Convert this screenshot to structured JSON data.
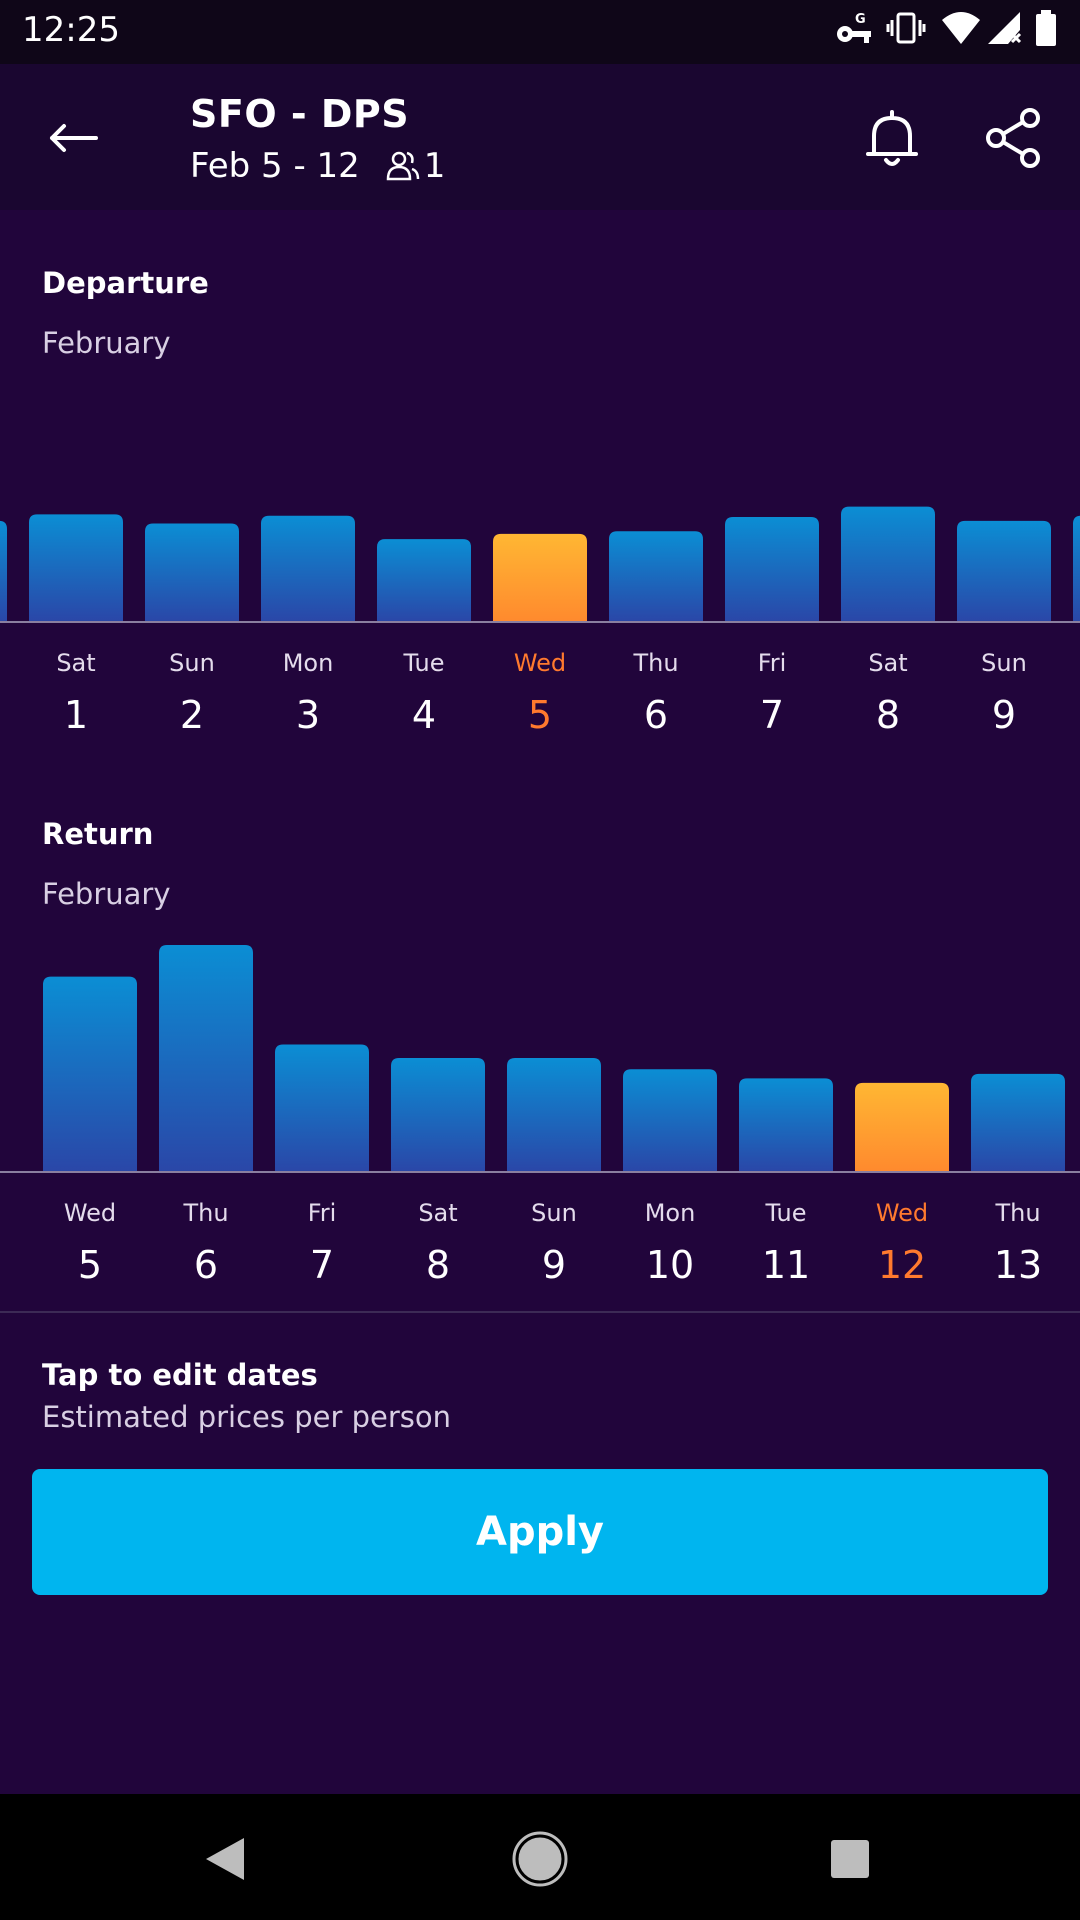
{
  "status_bar": {
    "time": "12:25",
    "icons": [
      "vpn-key-icon",
      "vibrate-icon",
      "wifi-icon",
      "signal-icon",
      "battery-icon"
    ]
  },
  "header": {
    "title": "SFO - DPS",
    "dates": "Feb 5 - 12",
    "passengers": "1",
    "icons": [
      "back-arrow-icon",
      "bell-icon",
      "share-icon"
    ]
  },
  "departure": {
    "title": "Departure",
    "month": "February"
  },
  "return": {
    "title": "Return",
    "month": "February"
  },
  "hint": {
    "title": "Tap to edit dates",
    "subtitle": "Estimated prices per person"
  },
  "apply_label": "Apply",
  "colors": {
    "background": "#21053b",
    "bar_top": "#0b8ed4",
    "bar_bottom": "#2a47a8",
    "selected_top": "#ffb733",
    "selected_bottom": "#ff8a2e",
    "selected_text": "#ff7a2e",
    "apply_button": "#00b5ef"
  },
  "chart_data": [
    {
      "type": "bar",
      "name": "departure",
      "days": [
        "Sat",
        "Sun",
        "Mon",
        "Tue",
        "Wed",
        "Thu",
        "Fri",
        "Sat",
        "Sun"
      ],
      "dates": [
        "1",
        "2",
        "3",
        "4",
        "5",
        "6",
        "7",
        "8",
        "9"
      ],
      "values": [
        0.82,
        0.75,
        0.81,
        0.63,
        0.67,
        0.69,
        0.8,
        0.88,
        0.77
      ],
      "edge_values": [
        0.77,
        0.81
      ],
      "selected_index": 4
    },
    {
      "type": "bar",
      "name": "return",
      "days": [
        "Wed",
        "Thu",
        "Fri",
        "Sat",
        "Sun",
        "Mon",
        "Tue",
        "Wed",
        "Thu"
      ],
      "dates": [
        "5",
        "6",
        "7",
        "8",
        "9",
        "10",
        "11",
        "12",
        "13"
      ],
      "values": [
        0.86,
        1.0,
        0.56,
        0.5,
        0.5,
        0.45,
        0.41,
        0.39,
        0.43
      ],
      "selected_index": 7
    }
  ]
}
